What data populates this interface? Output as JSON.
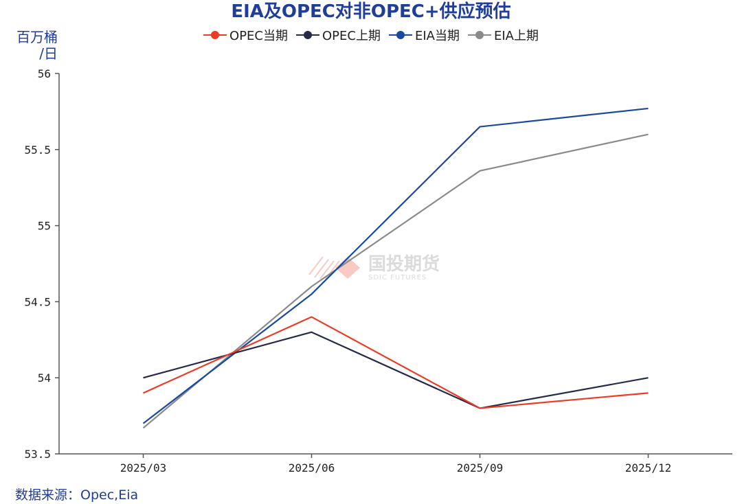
{
  "title": "EIA及OPEC对非OPEC+供应预估",
  "y_unit": {
    "line1": "百万桶",
    "line2": "/日"
  },
  "source": "数据来源：Opec,Eia",
  "watermark": {
    "cn": "国投期货",
    "en": "SDIC FUTURES"
  },
  "chart_data": {
    "type": "line",
    "title": "EIA及OPEC对非OPEC+供应预估",
    "ylabel": "百万桶/日",
    "xlabel": "",
    "categories": [
      "2025/03",
      "2025/06",
      "2025/09",
      "2025/12"
    ],
    "ylim": [
      53.5,
      56
    ],
    "yticks": [
      53.5,
      54,
      54.5,
      55,
      55.5,
      56
    ],
    "ytick_labels": [
      "53.5",
      "54",
      "54.5",
      "55",
      "55.5",
      "56"
    ],
    "legend_position": "top",
    "series": [
      {
        "name": "OPEC当期",
        "color": "#ee3b24",
        "values": [
          53.9,
          54.4,
          53.8,
          53.9
        ]
      },
      {
        "name": "OPEC上期",
        "color": "#262a4a",
        "values": [
          54.0,
          54.3,
          53.8,
          54.0
        ]
      },
      {
        "name": "EIA当期",
        "color": "#1a4aa0",
        "values": [
          53.7,
          54.55,
          55.65,
          55.77
        ]
      },
      {
        "name": "EIA上期",
        "color": "#8a8a8a",
        "values": [
          53.67,
          54.6,
          55.36,
          55.6
        ]
      }
    ]
  }
}
